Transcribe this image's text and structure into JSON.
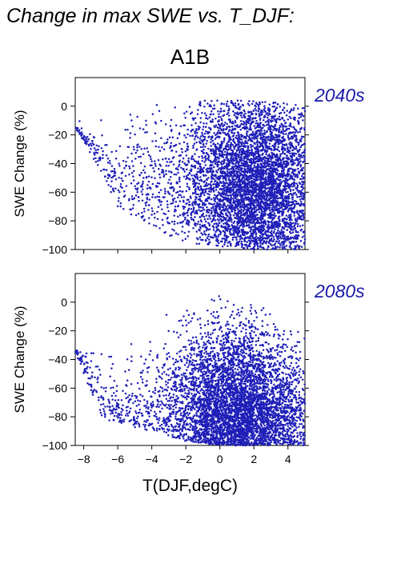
{
  "page": {
    "title": "Change in max SWE vs. T_DJF:",
    "scenario": "A1B"
  },
  "colors": {
    "points": "#1f1fb8",
    "period_label": "#1a1aa8",
    "axis": "#000000"
  },
  "chart_data": [
    {
      "type": "scatter",
      "title": "",
      "period_label": "2040s",
      "xlabel": "",
      "ylabel": "SWE Change (%)",
      "xlim": [
        -8.5,
        5
      ],
      "ylim": [
        -100,
        20
      ],
      "xticks": [
        -8,
        -6,
        -4,
        -2,
        0,
        2,
        4
      ],
      "yticks": [
        -100,
        -80,
        -60,
        -40,
        -20,
        0
      ],
      "grid": false,
      "legend": "none",
      "cloud": {
        "density_peak_x": 2,
        "density_peak_y": -55,
        "upper_envelope": [
          [
            -8.5,
            -10
          ],
          [
            -7.5,
            -5
          ],
          [
            -6,
            0
          ],
          [
            -4,
            2
          ],
          [
            -2,
            4
          ],
          [
            0,
            4
          ],
          [
            2,
            4
          ],
          [
            4,
            2
          ],
          [
            5,
            0
          ]
        ],
        "lower_envelope": [
          [
            -8.5,
            -15
          ],
          [
            -7,
            -45
          ],
          [
            -6,
            -70
          ],
          [
            -4,
            -85
          ],
          [
            -2,
            -95
          ],
          [
            0,
            -98
          ],
          [
            2,
            -100
          ],
          [
            5,
            -100
          ]
        ]
      }
    },
    {
      "type": "scatter",
      "title": "",
      "period_label": "2080s",
      "xlabel": "T(DJF,degC)",
      "ylabel": "SWE Change (%)",
      "xlim": [
        -8.5,
        5
      ],
      "ylim": [
        -100,
        20
      ],
      "xticks": [
        -8,
        -6,
        -4,
        -2,
        0,
        2,
        4
      ],
      "yticks": [
        -100,
        -80,
        -60,
        -40,
        -20,
        0
      ],
      "grid": false,
      "legend": "none",
      "cloud": {
        "density_peak_x": 1,
        "density_peak_y": -85,
        "upper_envelope": [
          [
            -8.5,
            -30
          ],
          [
            -7.5,
            -22
          ],
          [
            -6,
            -35
          ],
          [
            -4,
            -5
          ],
          [
            -2,
            0
          ],
          [
            0,
            5
          ],
          [
            2,
            0
          ],
          [
            4,
            -15
          ],
          [
            5,
            -20
          ]
        ],
        "lower_envelope": [
          [
            -8.5,
            -35
          ],
          [
            -7,
            -80
          ],
          [
            -6,
            -85
          ],
          [
            -4,
            -90
          ],
          [
            -2,
            -97
          ],
          [
            0,
            -100
          ],
          [
            2,
            -100
          ],
          [
            5,
            -100
          ]
        ]
      }
    }
  ]
}
